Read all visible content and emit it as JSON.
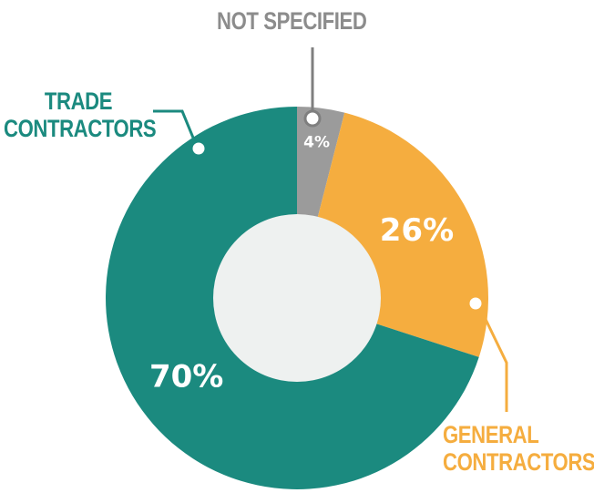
{
  "chart_data": {
    "type": "donut",
    "categories": [
      "NOT SPECIFIED",
      "GENERAL CONTRACTORS",
      "TRADE CONTRACTORS"
    ],
    "values": [
      4,
      26,
      70
    ],
    "value_labels": [
      "4%",
      "26%",
      "70%"
    ],
    "colors": [
      "#9b9b9b",
      "#f5ad3f",
      "#1b8a7f"
    ]
  }
}
